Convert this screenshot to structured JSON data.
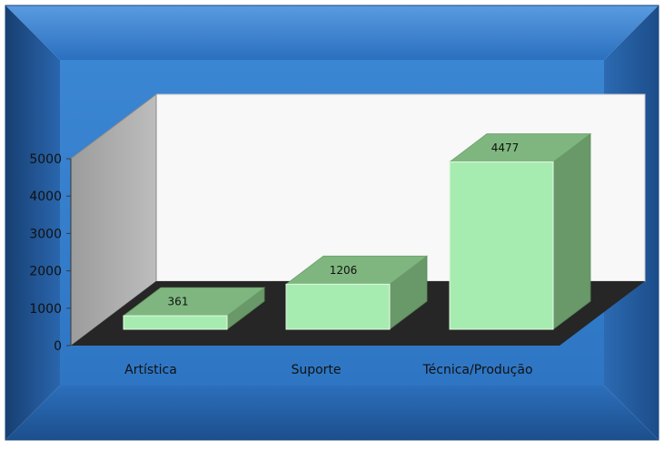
{
  "chart_data": {
    "type": "bar",
    "title": "",
    "xlabel": "",
    "ylabel": "",
    "categories": [
      "Artística",
      "Suporte",
      "Técnica/Produção"
    ],
    "values": [
      361,
      1206,
      4477
    ],
    "data_labels": [
      "361",
      "1206",
      "4477"
    ],
    "yticks": [
      "0",
      "1000",
      "2000",
      "3000",
      "4000",
      "5000"
    ],
    "ylim": [
      0,
      5000
    ],
    "style": "3d",
    "grid": false,
    "legend": "none",
    "colors": {
      "bar_front": "#a6ecb0",
      "bar_top": "#7fb67f",
      "bar_side": "#699869",
      "bar_edge": "#e8f8e8",
      "floor": "#262626",
      "back_wall": "#f8f8f8",
      "side_wall": "#b4b4b4",
      "frame_dark": "#1f5595",
      "frame_light": "#5c9ad6"
    }
  }
}
